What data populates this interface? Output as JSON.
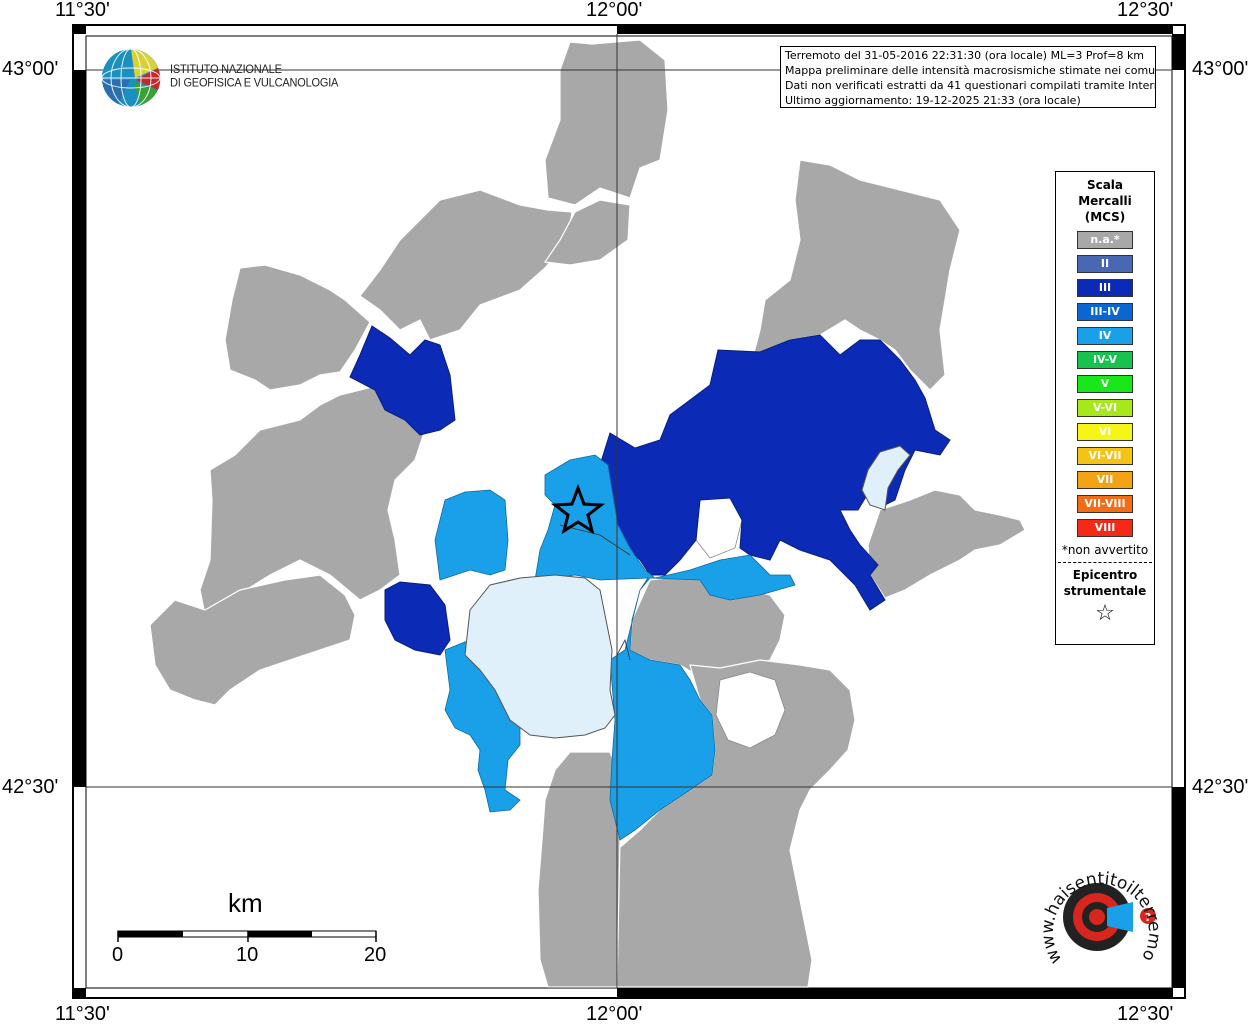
{
  "coords": {
    "lon_west": "11°30'",
    "lon_center": "12°00'",
    "lon_east": "12°30'",
    "lat_north": "43°00'",
    "lat_south": "42°30'"
  },
  "institute": {
    "line1": "ISTITUTO NAZIONALE",
    "line2": "DI GEOFISICA E VULCANOLOGIA"
  },
  "info": {
    "line1": "Terremoto del 31-05-2016 22:31:30 (ora locale) ML=3 Prof=8 km",
    "line2": "Mappa preliminare delle intensità macrosismiche stimate nei comuni",
    "line3": "Dati non verificati estratti da 41 questionari compilati tramite Internet.",
    "line4": "Ultimo aggiornamento: 19-12-2025 21:33 (ora locale)"
  },
  "legend": {
    "title1": "Scala",
    "title2": "Mercalli",
    "title3": "(MCS)",
    "items": [
      {
        "label": "n.a.*",
        "color": "#a8a8a8"
      },
      {
        "label": "II",
        "color": "#4a67b3"
      },
      {
        "label": "III",
        "color": "#0b2ab5"
      },
      {
        "label": "III-IV",
        "color": "#0a66d1"
      },
      {
        "label": "IV",
        "color": "#1aa0e8"
      },
      {
        "label": "IV-V",
        "color": "#17c24f"
      },
      {
        "label": "V",
        "color": "#18e81a"
      },
      {
        "label": "V-VI",
        "color": "#a6e81a"
      },
      {
        "label": "VI",
        "color": "#f5f516"
      },
      {
        "label": "VI-VII",
        "color": "#f5c316"
      },
      {
        "label": "VII",
        "color": "#f5a316"
      },
      {
        "label": "VII-VIII",
        "color": "#f56c16"
      },
      {
        "label": "VIII",
        "color": "#f52a16"
      }
    ],
    "note": "*non avvertito",
    "epicenter1": "Epicentro",
    "epicenter2": "strumentale",
    "star": "☆"
  },
  "scale_bar": {
    "title": "km",
    "labels": [
      "0",
      "10",
      "20"
    ]
  },
  "colors": {
    "not_available": "#a8a8a8",
    "intensity_iii": "#0b2ab5",
    "intensity_iv": "#1aa0e8",
    "not_felt": "#dff0fb"
  },
  "watermark": {
    "text": "www.haisentitoilterremoto.it"
  }
}
